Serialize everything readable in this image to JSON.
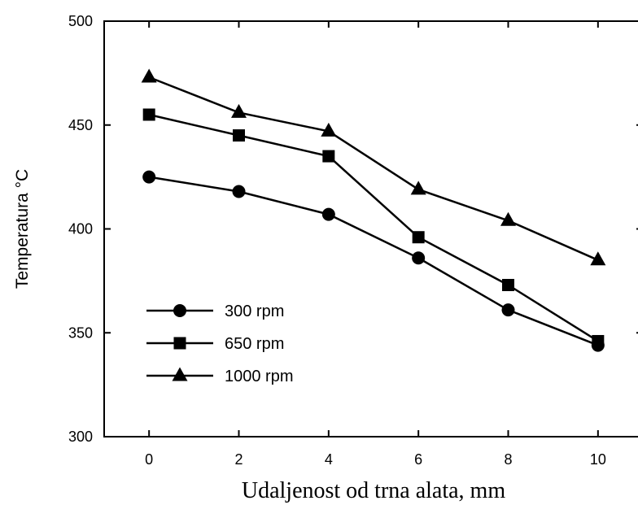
{
  "chart_data": {
    "type": "line",
    "title": "",
    "xlabel": "Udaljenost od trna alata, mm",
    "ylabel": "Temperatura °C",
    "x": [
      0,
      2,
      4,
      6,
      8,
      10
    ],
    "xlim": [
      -1,
      11
    ],
    "ylim": [
      300,
      500
    ],
    "xticks": [
      0,
      2,
      4,
      6,
      8,
      10
    ],
    "yticks": [
      300,
      350,
      400,
      450,
      500
    ],
    "xtick_labels": [
      "0",
      "2",
      "4",
      "6",
      "8",
      "10"
    ],
    "ytick_labels": [
      "300",
      "350",
      "400",
      "450",
      "500"
    ],
    "grid": false,
    "legend_position": "bottom-left",
    "series": [
      {
        "name": "300 rpm",
        "marker": "circle",
        "color": "#000000",
        "values": [
          425,
          418,
          407,
          386,
          361,
          344
        ]
      },
      {
        "name": "650 rpm",
        "marker": "square",
        "color": "#000000",
        "values": [
          455,
          445,
          435,
          396,
          373,
          346
        ]
      },
      {
        "name": "1000 rpm",
        "marker": "triangle",
        "color": "#000000",
        "values": [
          473,
          456,
          447,
          419,
          404,
          385
        ]
      }
    ]
  }
}
